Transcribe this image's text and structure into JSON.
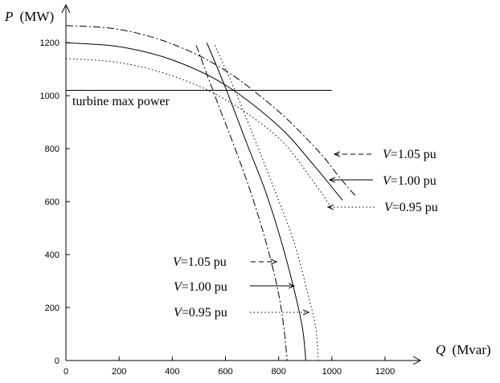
{
  "chart_data": {
    "type": "line",
    "xlabel": {
      "var": "Q",
      "unit": "(Mvar)"
    },
    "ylabel": {
      "var": "P",
      "unit": "(MW)"
    },
    "xlim": [
      0,
      1330
    ],
    "ylim": [
      0,
      1340
    ],
    "xticks": [
      0,
      200,
      400,
      600,
      800,
      1000,
      1200
    ],
    "yticks": [
      0,
      200,
      400,
      600,
      800,
      1000,
      1200
    ],
    "grid": false,
    "hline": {
      "y": 1020,
      "x_end": 1000,
      "label": "turbine max power"
    },
    "series": [
      {
        "name": "V=1.05 pu",
        "kind": "armature",
        "style": "dashdot",
        "x": [
          0,
          200,
          400,
          600,
          800,
          950,
          1030,
          1090
        ],
        "y": [
          1265,
          1250,
          1195,
          1095,
          940,
          790,
          690,
          620
        ]
      },
      {
        "name": "V=1.00 pu",
        "kind": "armature",
        "style": "solid",
        "x": [
          0,
          200,
          400,
          600,
          800,
          930,
          1040
        ],
        "y": [
          1200,
          1185,
          1135,
          1040,
          885,
          740,
          605
        ]
      },
      {
        "name": "V=0.95 pu",
        "kind": "armature",
        "style": "dotted",
        "x": [
          0,
          200,
          400,
          600,
          800,
          920,
          1000
        ],
        "y": [
          1140,
          1125,
          1075,
          985,
          840,
          690,
          575
        ]
      },
      {
        "name": "V=1.05 pu",
        "kind": "field",
        "style": "dashdot",
        "x": [
          490,
          560,
          640,
          700,
          760,
          800,
          820,
          832
        ],
        "y": [
          1190,
          1000,
          790,
          620,
          420,
          250,
          120,
          0
        ]
      },
      {
        "name": "V=1.00 pu",
        "kind": "field",
        "style": "solid",
        "x": [
          530,
          600,
          680,
          750,
          810,
          860,
          890,
          902
        ],
        "y": [
          1200,
          1030,
          820,
          640,
          450,
          260,
          120,
          0
        ]
      },
      {
        "name": "V=0.95 pu",
        "kind": "field",
        "style": "dotted",
        "x": [
          560,
          640,
          720,
          790,
          860,
          910,
          940,
          948
        ],
        "y": [
          1190,
          1010,
          810,
          630,
          440,
          250,
          120,
          0
        ]
      }
    ],
    "annotations": [
      {
        "var": "V",
        "text": "=1.05 pu",
        "style": "dashdot",
        "group": "armature"
      },
      {
        "var": "V",
        "text": "=1.00 pu",
        "style": "solid",
        "group": "armature"
      },
      {
        "var": "V",
        "text": "=0.95 pu",
        "style": "dotted",
        "group": "armature"
      },
      {
        "var": "V",
        "text": "=1.05 pu",
        "style": "dashdot",
        "group": "field"
      },
      {
        "var": "V",
        "text": "=1.00 pu",
        "style": "solid",
        "group": "field"
      },
      {
        "var": "V",
        "text": "=0.95 pu",
        "style": "dotted",
        "group": "field"
      }
    ]
  }
}
